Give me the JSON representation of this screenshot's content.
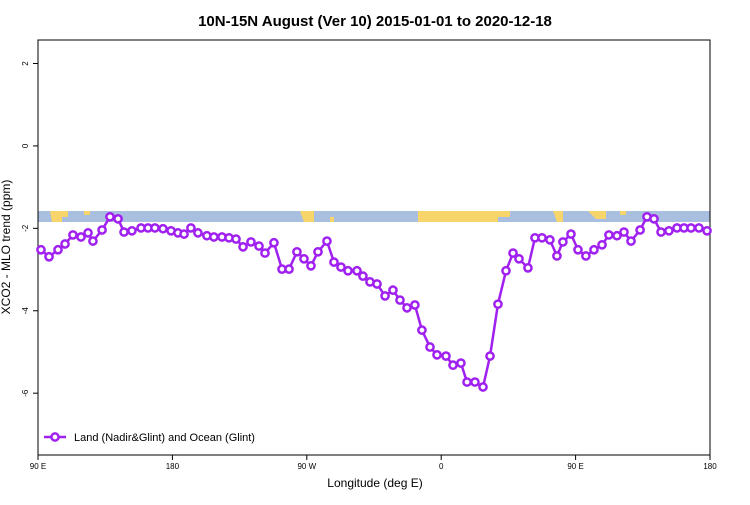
{
  "chart_data": {
    "type": "line",
    "title": "10N-15N August (Ver 10)   2015-01-01 to 2020-12-18",
    "x_label": "Longitude (deg E)",
    "y_label": "XCO2 - MLO trend (ppm)",
    "xlim": [
      90,
      540
    ],
    "xticks": [
      {
        "value": 90,
        "label": "90 E"
      },
      180,
      {
        "value": 270,
        "label": "90 W"
      },
      {
        "value": 360,
        "label": "0"
      },
      {
        "value": 450,
        "label": "90 E"
      },
      {
        "value": 540,
        "label": "180"
      }
    ],
    "ylim": [
      -7.5,
      2.57
    ],
    "yticks": [
      -6,
      -4,
      -2,
      0,
      2
    ],
    "legend": "bottom-left",
    "x": [
      92.0,
      97.4,
      103.4,
      108.1,
      113.4,
      118.8,
      123.5,
      126.8,
      132.9,
      138.2,
      143.6,
      147.6,
      152.9,
      159.0,
      163.7,
      168.3,
      173.7,
      179.1,
      183.7,
      187.8,
      192.4,
      197.1,
      203.1,
      207.8,
      213.2,
      217.9,
      222.6,
      227.3,
      232.6,
      238.0,
      242.0,
      248.0,
      253.4,
      258.1,
      263.4,
      268.1,
      272.8,
      277.5,
      283.5,
      288.2,
      292.9,
      297.6,
      303.6,
      307.6,
      312.3,
      317.0,
      322.4,
      327.7,
      332.4,
      337.1,
      342.4,
      347.1,
      352.5,
      357.2,
      363.2,
      367.9,
      373.2,
      377.3,
      382.6,
      388.0,
      392.7,
      398.0,
      403.4,
      408.1,
      412.1,
      418.1,
      422.8,
      427.5,
      432.8,
      437.5,
      441.5,
      446.9,
      451.6,
      456.9,
      462.3,
      467.7,
      472.3,
      477.7,
      482.4,
      487.1,
      493.2,
      497.8,
      502.5,
      507.2,
      512.5,
      517.9,
      522.6,
      527.3,
      532.6,
      538.0
    ],
    "series": [
      {
        "name": "Land (Nadir&Glint) and Ocean (Glint)",
        "color": "#a020f0",
        "values": [
          -2.52,
          -2.69,
          -2.52,
          -2.38,
          -2.16,
          -2.21,
          -2.11,
          -2.31,
          -2.04,
          -1.72,
          -1.77,
          -2.09,
          -2.06,
          -1.99,
          -1.99,
          -1.99,
          -2.01,
          -2.06,
          -2.11,
          -2.14,
          -1.99,
          -2.11,
          -2.18,
          -2.21,
          -2.21,
          -2.23,
          -2.26,
          -2.45,
          -2.33,
          -2.43,
          -2.6,
          -2.35,
          -2.99,
          -2.99,
          -2.57,
          -2.74,
          -2.91,
          -2.57,
          -2.31,
          -2.82,
          -2.94,
          -3.03,
          -3.03,
          -3.16,
          -3.3,
          -3.35,
          -3.64,
          -3.5,
          -3.74,
          -3.93,
          -3.86,
          -4.47,
          -4.88,
          -5.07,
          -5.1,
          -5.32,
          -5.27,
          -5.73,
          -5.73,
          -5.85,
          -5.1,
          -3.84,
          -3.03,
          -2.6,
          -2.74,
          -2.96,
          -2.23,
          -2.23,
          -2.28,
          -2.67,
          -2.33,
          -2.14,
          -2.52,
          -2.67,
          -2.52,
          -2.4,
          -2.16,
          -2.18,
          -2.09,
          -2.31,
          -2.04,
          -1.72,
          -1.77,
          -2.09,
          -2.06,
          -1.99,
          -1.99,
          -1.99,
          -1.99,
          -2.06
        ]
      }
    ]
  }
}
